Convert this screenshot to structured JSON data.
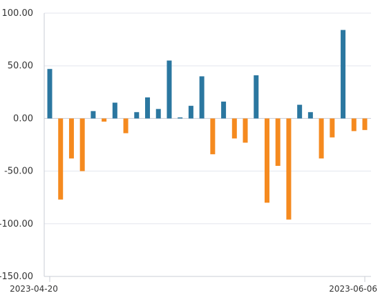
{
  "chart_data": {
    "type": "bar",
    "title": "",
    "xlabel": "",
    "ylabel": "",
    "ylim": [
      -150,
      100
    ],
    "yticks": [
      100,
      50,
      0,
      -50,
      -100,
      -150
    ],
    "ytick_labels": [
      "100.00",
      "50.00",
      "0.00",
      "-50.00",
      "-100.00",
      "-150.00"
    ],
    "x_tick_labels": [
      "2023-04-20",
      "2023-06-06"
    ],
    "grid": true,
    "positive_color": "#2b77a0",
    "negative_color": "#f58a1f",
    "values": [
      47,
      -77,
      -38,
      -50,
      7,
      -3,
      15,
      -14,
      6,
      20,
      9,
      55,
      1,
      12,
      40,
      -34,
      16,
      -19,
      -23,
      41,
      -80,
      -45,
      -96,
      13,
      6,
      -38,
      -18,
      84,
      -12,
      -11
    ]
  }
}
